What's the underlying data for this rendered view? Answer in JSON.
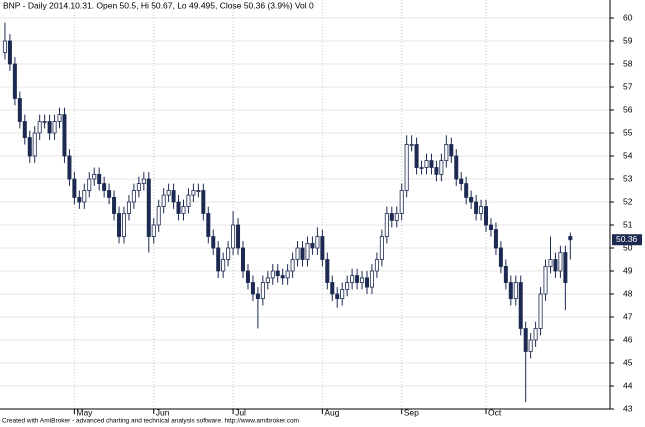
{
  "chart_data": {
    "type": "candlestick",
    "title": "BNP - Daily 2014.10.31. Open 50.5, Hi 50.67, Lo 49.495, Close 50.36 (3.9%) Vol 0",
    "footer": "Created with AmiBroker - advanced charting and technical analysis software. http://www.amibroker.com",
    "up_color": "#ffffff",
    "down_color": "#1c2a52",
    "wick_color": "#1c2a52",
    "grid": true,
    "ylim": [
      43,
      60
    ],
    "yticks": [
      43,
      44,
      45,
      46,
      47,
      48,
      49,
      50,
      51,
      52,
      53,
      54,
      55,
      56,
      57,
      58,
      59,
      60
    ],
    "xlim": [
      -1,
      122
    ],
    "xticks": [
      {
        "value": 14,
        "label": "May"
      },
      {
        "value": 30,
        "label": "Jun"
      },
      {
        "value": 46,
        "label": "Jul"
      },
      {
        "value": 64,
        "label": "Aug"
      },
      {
        "value": 80,
        "label": "Sep"
      },
      {
        "value": 97,
        "label": "Oct"
      }
    ],
    "candles": [
      [
        58.5,
        59.8,
        58.2,
        59
      ],
      [
        59,
        59.3,
        57.7,
        58
      ],
      [
        58,
        58.3,
        56.2,
        56.5
      ],
      [
        56.5,
        56.8,
        55.2,
        55.5
      ],
      [
        55.5,
        55.8,
        54.5,
        54.8
      ],
      [
        54.8,
        55.1,
        53.7,
        54
      ],
      [
        54,
        55.3,
        53.7,
        55
      ],
      [
        55,
        55.8,
        54.7,
        55.5
      ],
      [
        55.5,
        55.8,
        55.2,
        55.5
      ],
      [
        55.5,
        55.8,
        54.7,
        55
      ],
      [
        55,
        55.8,
        54.7,
        55.5
      ],
      [
        55.5,
        56.1,
        55.2,
        55.8
      ],
      [
        55.8,
        56.1,
        53.7,
        54
      ],
      [
        54,
        54.3,
        52.7,
        53
      ],
      [
        53,
        53.3,
        51.9,
        52.2
      ],
      [
        52.2,
        52.5,
        51.7,
        52
      ],
      [
        52,
        52.8,
        51.7,
        52.5
      ],
      [
        52.5,
        53.3,
        52.2,
        53
      ],
      [
        53,
        53.5,
        52.7,
        53.2
      ],
      [
        53.2,
        53.5,
        52.5,
        52.8
      ],
      [
        52.8,
        53.1,
        52.2,
        52.5
      ],
      [
        52.5,
        52.8,
        51.9,
        52.2
      ],
      [
        52.2,
        52.5,
        51.2,
        51.5
      ],
      [
        51.5,
        51.8,
        50.2,
        50.5
      ],
      [
        50.5,
        51.8,
        50.2,
        51.5
      ],
      [
        51.5,
        52.3,
        51.2,
        52
      ],
      [
        52,
        52.8,
        51.7,
        52.5
      ],
      [
        52.5,
        53.1,
        52.2,
        52.8
      ],
      [
        52.8,
        53.3,
        52.5,
        53
      ],
      [
        53,
        53.3,
        49.8,
        50.5
      ],
      [
        50.5,
        51.3,
        50.2,
        51
      ],
      [
        51,
        52.1,
        50.7,
        51.8
      ],
      [
        51.8,
        52.6,
        51.5,
        52.3
      ],
      [
        52.3,
        52.8,
        52,
        52.5
      ],
      [
        52.5,
        52.8,
        51.7,
        52
      ],
      [
        52,
        52.3,
        51.2,
        51.5
      ],
      [
        51.5,
        52.1,
        51.2,
        51.8
      ],
      [
        51.8,
        52.6,
        51.5,
        52.3
      ],
      [
        52.3,
        52.8,
        52,
        52.5
      ],
      [
        52.5,
        52.8,
        52.2,
        52.5
      ],
      [
        52.5,
        52.8,
        51.2,
        51.5
      ],
      [
        51.5,
        51.8,
        50.2,
        50.5
      ],
      [
        50.5,
        50.8,
        49.7,
        50
      ],
      [
        50,
        50.3,
        48.7,
        49
      ],
      [
        49,
        49.8,
        48.7,
        49.5
      ],
      [
        49.5,
        50.3,
        49.2,
        50
      ],
      [
        50,
        51.6,
        49.7,
        51
      ],
      [
        51,
        51.3,
        49.7,
        50
      ],
      [
        50,
        50.3,
        48.7,
        49
      ],
      [
        49,
        49.3,
        48.2,
        48.5
      ],
      [
        48.5,
        48.8,
        47.7,
        48
      ],
      [
        48,
        48.3,
        46.5,
        47.8
      ],
      [
        47.8,
        48.8,
        47.5,
        48.5
      ],
      [
        48.5,
        49,
        48.2,
        48.7
      ],
      [
        48.7,
        49.3,
        48.4,
        49
      ],
      [
        49,
        49.3,
        48.5,
        48.8
      ],
      [
        48.8,
        49.1,
        48.4,
        48.7
      ],
      [
        48.7,
        49.3,
        48.4,
        49
      ],
      [
        49,
        49.8,
        48.7,
        49.5
      ],
      [
        49.5,
        50.3,
        49.2,
        50
      ],
      [
        50,
        50.3,
        49.2,
        49.5
      ],
      [
        49.5,
        50.5,
        49.2,
        50.2
      ],
      [
        50.2,
        50.5,
        49.7,
        50
      ],
      [
        50,
        50.9,
        49.7,
        50.5
      ],
      [
        50.5,
        50.8,
        49.2,
        49.5
      ],
      [
        49.5,
        49.8,
        48.2,
        48.5
      ],
      [
        48.5,
        48.8,
        47.7,
        48
      ],
      [
        48,
        48.3,
        47.4,
        47.8
      ],
      [
        47.8,
        48.5,
        47.5,
        48.2
      ],
      [
        48.2,
        48.8,
        47.9,
        48.5
      ],
      [
        48.5,
        49.1,
        48.2,
        48.8
      ],
      [
        48.8,
        49.1,
        48.2,
        48.5
      ],
      [
        48.5,
        49,
        48.2,
        48.7
      ],
      [
        48.7,
        49,
        48,
        48.3
      ],
      [
        48.3,
        49.3,
        48,
        49
      ],
      [
        49,
        49.8,
        48.7,
        49.5
      ],
      [
        49.5,
        50.8,
        49.2,
        50.5
      ],
      [
        50.5,
        51.8,
        50.2,
        51.5
      ],
      [
        51.5,
        51.8,
        50.9,
        51.2
      ],
      [
        51.2,
        51.8,
        50.9,
        51.5
      ],
      [
        51.5,
        52.8,
        51.2,
        52.5
      ],
      [
        52.5,
        54.9,
        52.2,
        54.5
      ],
      [
        54.5,
        54.9,
        54.2,
        54.5
      ],
      [
        54.5,
        54.8,
        53.2,
        53.5
      ],
      [
        53.5,
        53.8,
        53.2,
        53.5
      ],
      [
        53.5,
        54.1,
        53.2,
        53.8
      ],
      [
        53.8,
        54.1,
        53.2,
        53.5
      ],
      [
        53.5,
        53.8,
        52.9,
        53.2
      ],
      [
        53.2,
        54.1,
        52.9,
        53.8
      ],
      [
        53.8,
        54.9,
        53.5,
        54.5
      ],
      [
        54.5,
        54.8,
        53.7,
        54
      ],
      [
        54,
        54.3,
        52.7,
        53
      ],
      [
        53,
        53.3,
        52.5,
        52.8
      ],
      [
        52.8,
        53.1,
        51.9,
        52.2
      ],
      [
        52.2,
        52.5,
        51.7,
        52
      ],
      [
        52,
        52.3,
        51.2,
        51.5
      ],
      [
        51.5,
        52.1,
        51.2,
        51.8
      ],
      [
        51.8,
        52.1,
        50.7,
        51
      ],
      [
        51,
        51.3,
        50.5,
        50.8
      ],
      [
        50.8,
        51.1,
        49.7,
        50
      ],
      [
        50,
        50.3,
        48.9,
        49.2
      ],
      [
        49.2,
        49.5,
        48.2,
        48.5
      ],
      [
        48.5,
        48.8,
        47.5,
        47.8
      ],
      [
        47.8,
        48.8,
        47.5,
        48.5
      ],
      [
        48.5,
        48.8,
        46.2,
        46.5
      ],
      [
        46.5,
        46.8,
        43.3,
        45.5
      ],
      [
        45.5,
        46.3,
        45.2,
        46
      ],
      [
        46,
        46.8,
        45.7,
        46.5
      ],
      [
        46.5,
        48.3,
        46.2,
        48
      ],
      [
        48,
        49.5,
        47.7,
        49.2
      ],
      [
        49.2,
        50.5,
        48.9,
        49.5
      ],
      [
        49.5,
        49.8,
        48.7,
        49
      ],
      [
        49,
        50.1,
        48.7,
        49.8
      ],
      [
        49.8,
        50.1,
        47.3,
        48.5
      ],
      [
        50.5,
        50.67,
        49.495,
        50.36
      ]
    ]
  }
}
